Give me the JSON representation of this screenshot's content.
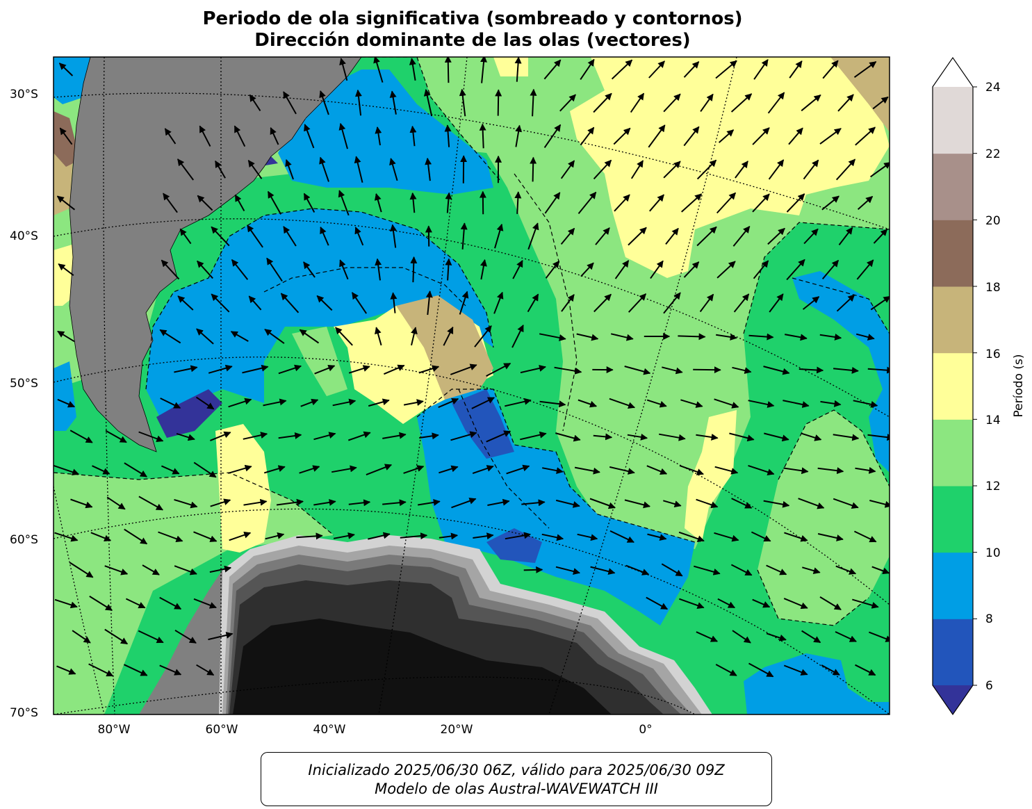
{
  "title": {
    "line1": "Periodo de ola significativa (sombreado y contornos)",
    "line2": "Dirección dominante de las olas (vectores)"
  },
  "map": {
    "lat_labels": [
      "30°S",
      "40°S",
      "50°S",
      "60°S",
      "70°S"
    ],
    "lon_labels": [
      "80°W",
      "60°W",
      "40°W",
      "20°W",
      "0°"
    ],
    "land_color": "#808080",
    "ice_colors": [
      "#111111",
      "#2f2f2f",
      "#555555",
      "#7a7a7a",
      "#a5a5a5",
      "#d3d3d3"
    ]
  },
  "colorbar": {
    "label": "Período (s)",
    "ticks": [
      "6",
      "8",
      "10",
      "12",
      "14",
      "16",
      "18",
      "20",
      "22",
      "24"
    ],
    "bins": [
      {
        "from": 6,
        "to": 8,
        "color": "#2255bb"
      },
      {
        "from": 8,
        "to": 10,
        "color": "#009ee5"
      },
      {
        "from": 10,
        "to": 12,
        "color": "#1fd16b"
      },
      {
        "from": 12,
        "to": 14,
        "color": "#8ce680"
      },
      {
        "from": 14,
        "to": 16,
        "color": "#ffff99"
      },
      {
        "from": 16,
        "to": 18,
        "color": "#c7b47a"
      },
      {
        "from": 18,
        "to": 20,
        "color": "#8c6b5a"
      },
      {
        "from": 20,
        "to": 22,
        "color": "#a8908a"
      },
      {
        "from": 22,
        "to": 24,
        "color": "#e0d9d7"
      }
    ],
    "under_color": "#333399",
    "over_color": "#ffffff"
  },
  "footer": {
    "line1": "Inicializado 2025/06/30 06Z, válido para 2025/06/30 09Z",
    "line2": "Modelo de olas Austral-WAVEWATCH III"
  }
}
